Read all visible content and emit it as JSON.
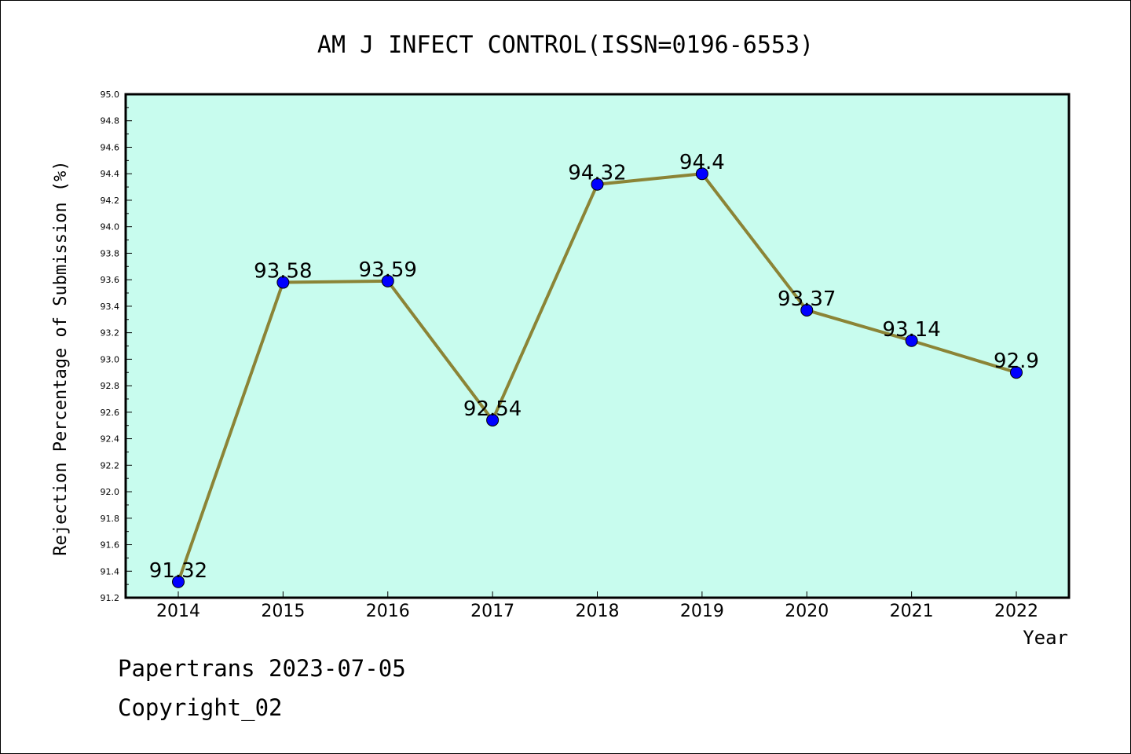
{
  "chart_data": {
    "type": "line",
    "title": "AM J INFECT CONTROL(ISSN=0196-6553)",
    "xlabel": "Year",
    "ylabel": "Rejection Percentage of Submission (%)",
    "categories": [
      "2014",
      "2015",
      "2016",
      "2017",
      "2018",
      "2019",
      "2020",
      "2021",
      "2022"
    ],
    "values": [
      91.32,
      93.58,
      93.59,
      92.54,
      94.32,
      94.4,
      93.37,
      93.14,
      92.9
    ],
    "data_labels": [
      "91.32",
      "93.58",
      "93.59",
      "92.54",
      "94.32",
      "94.4",
      "93.37",
      "93.14",
      "92.9"
    ],
    "ylim": [
      91.2,
      95.0
    ],
    "yticks": [
      "91.2",
      "91.4",
      "91.6",
      "91.8",
      "92.0",
      "92.2",
      "92.4",
      "92.6",
      "92.8",
      "93.0",
      "93.2",
      "93.4",
      "93.6",
      "93.8",
      "94.0",
      "94.2",
      "94.4",
      "94.6",
      "94.8",
      "95.0"
    ],
    "grid": false,
    "colors": {
      "plot_background": "#c8fcee",
      "line": "#8b8436",
      "marker": "#0000ff"
    }
  },
  "footer": {
    "line1": "Papertrans 2023-07-05",
    "line2": "Copyright_02"
  }
}
